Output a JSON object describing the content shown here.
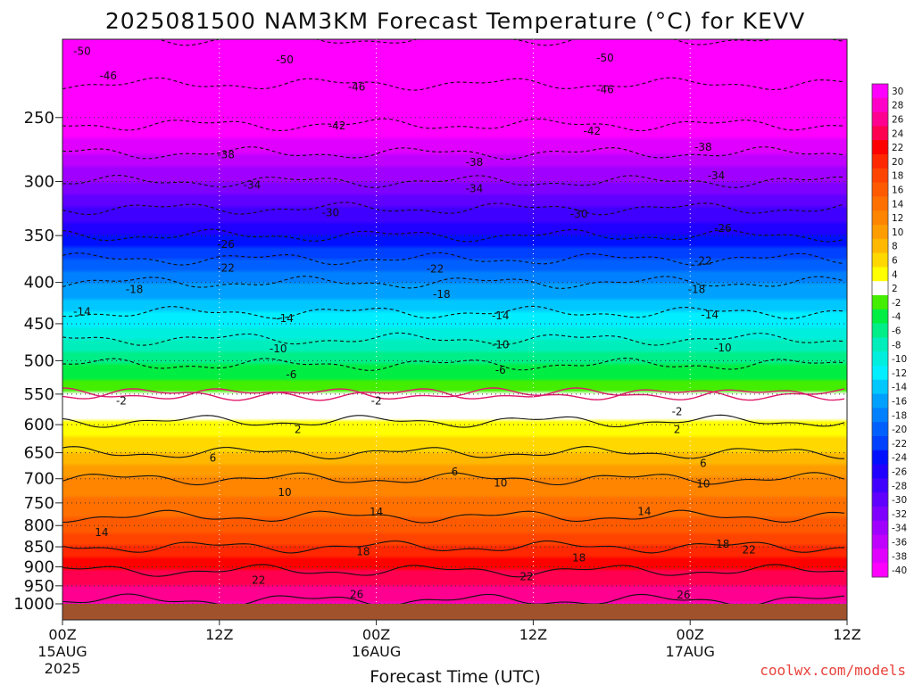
{
  "title": "2025081500 NAM3KM Forecast Temperature (°C) for KEVV",
  "credit": "coolwx.com/models",
  "colors": {
    "ground": "#a0522d",
    "freezing_line": "#e0186c"
  },
  "chart_data": {
    "type": "heatmap",
    "title": "2025081500 NAM3KM Forecast Temperature (°C) for KEVV",
    "xlabel": "Forecast Time (UTC)",
    "ylabel": "",
    "x_range_hours": [
      0,
      60
    ],
    "y_range_hpa": [
      1000,
      200
    ],
    "y_scale": "log-pressure",
    "grid": true,
    "y_ticks": [
      250,
      300,
      350,
      400,
      450,
      500,
      550,
      600,
      650,
      700,
      750,
      800,
      850,
      900,
      950,
      1000
    ],
    "x_ticks": [
      {
        "hour": 0,
        "l1": "00Z",
        "l2": "15AUG",
        "l3": "2025"
      },
      {
        "hour": 12,
        "l1": "12Z",
        "l2": "",
        "l3": ""
      },
      {
        "hour": 24,
        "l1": "00Z",
        "l2": "16AUG",
        "l3": ""
      },
      {
        "hour": 36,
        "l1": "12Z",
        "l2": "",
        "l3": ""
      },
      {
        "hour": 48,
        "l1": "00Z",
        "l2": "17AUG",
        "l3": ""
      },
      {
        "hour": 60,
        "l1": "12Z",
        "l2": "",
        "l3": ""
      }
    ],
    "colorbar_labels": [
      "30",
      "28",
      "26",
      "24",
      "22",
      "20",
      "18",
      "16",
      "14",
      "12",
      "10",
      "8",
      "6",
      "4",
      "2",
      "-2",
      "-4",
      "-6",
      "-8",
      "-10",
      "-12",
      "-14",
      "-16",
      "-18",
      "-20",
      "-22",
      "-24",
      "-26",
      "-28",
      "-30",
      "-32",
      "-34",
      "-36",
      "-38",
      "-40"
    ],
    "color_levels": [
      {
        "min": 28,
        "max": 30,
        "color": "#ff00ff"
      },
      {
        "min": 26,
        "max": 28,
        "color": "#ff00c8"
      },
      {
        "min": 24,
        "max": 26,
        "color": "#ff0090"
      },
      {
        "min": 22,
        "max": 24,
        "color": "#ff0050"
      },
      {
        "min": 20,
        "max": 22,
        "color": "#ff0000"
      },
      {
        "min": 18,
        "max": 20,
        "color": "#ff2800"
      },
      {
        "min": 16,
        "max": 18,
        "color": "#ff4400"
      },
      {
        "min": 14,
        "max": 16,
        "color": "#ff5a00"
      },
      {
        "min": 12,
        "max": 14,
        "color": "#ff7000"
      },
      {
        "min": 10,
        "max": 12,
        "color": "#ff8400"
      },
      {
        "min": 8,
        "max": 10,
        "color": "#ff9c00"
      },
      {
        "min": 6,
        "max": 8,
        "color": "#ffb800"
      },
      {
        "min": 4,
        "max": 6,
        "color": "#ffd800"
      },
      {
        "min": 2,
        "max": 4,
        "color": "#ffff00"
      },
      {
        "min": -2,
        "max": 2,
        "color": "#ffffff"
      },
      {
        "min": -4,
        "max": -2,
        "color": "#44ee00"
      },
      {
        "min": -6,
        "max": -4,
        "color": "#00ee44"
      },
      {
        "min": -8,
        "max": -6,
        "color": "#00ee88"
      },
      {
        "min": -10,
        "max": -8,
        "color": "#00eebb"
      },
      {
        "min": -12,
        "max": -10,
        "color": "#00eedd"
      },
      {
        "min": -14,
        "max": -12,
        "color": "#00eeff"
      },
      {
        "min": -16,
        "max": -14,
        "color": "#00c8ff"
      },
      {
        "min": -18,
        "max": -16,
        "color": "#00a0ff"
      },
      {
        "min": -20,
        "max": -18,
        "color": "#0080ff"
      },
      {
        "min": -22,
        "max": -20,
        "color": "#0060ff"
      },
      {
        "min": -24,
        "max": -22,
        "color": "#0040ff"
      },
      {
        "min": -26,
        "max": -24,
        "color": "#0010ff"
      },
      {
        "min": -28,
        "max": -26,
        "color": "#2000ff"
      },
      {
        "min": -30,
        "max": -28,
        "color": "#4000ff"
      },
      {
        "min": -32,
        "max": -30,
        "color": "#6000ff"
      },
      {
        "min": -34,
        "max": -32,
        "color": "#8000ff"
      },
      {
        "min": -36,
        "max": -34,
        "color": "#a000ff"
      },
      {
        "min": -38,
        "max": -36,
        "color": "#c000ff"
      },
      {
        "min": -40,
        "max": -38,
        "color": "#e000ff"
      },
      {
        "min": -60,
        "max": -40,
        "color": "#ff00ff"
      }
    ],
    "temperature_profile": [
      {
        "p": 1000,
        "t": 26.5
      },
      {
        "p": 950,
        "t": 24
      },
      {
        "p": 900,
        "t": 21.5
      },
      {
        "p": 850,
        "t": 18
      },
      {
        "p": 800,
        "t": 15
      },
      {
        "p": 750,
        "t": 12.5
      },
      {
        "p": 700,
        "t": 10
      },
      {
        "p": 650,
        "t": 6
      },
      {
        "p": 600,
        "t": 2.5
      },
      {
        "p": 550,
        "t": -2
      },
      {
        "p": 500,
        "t": -6.5
      },
      {
        "p": 450,
        "t": -12.5
      },
      {
        "p": 400,
        "t": -18
      },
      {
        "p": 350,
        "t": -26
      },
      {
        "p": 300,
        "t": -34
      },
      {
        "p": 250,
        "t": -43
      },
      {
        "p": 200,
        "t": -50
      }
    ],
    "contour_labels": [
      {
        "t": "-50",
        "h": 1.5,
        "p": 207
      },
      {
        "t": "-50",
        "h": 17,
        "p": 212
      },
      {
        "t": "-50",
        "h": 41.5,
        "p": 211
      },
      {
        "t": "-46",
        "h": 3.5,
        "p": 222
      },
      {
        "t": "-46",
        "h": 22.5,
        "p": 229
      },
      {
        "t": "-46",
        "h": 41.5,
        "p": 231
      },
      {
        "t": "-42",
        "h": 21,
        "p": 256
      },
      {
        "t": "-42",
        "h": 40.5,
        "p": 260
      },
      {
        "t": "-38",
        "h": 12.5,
        "p": 278
      },
      {
        "t": "-38",
        "h": 31.5,
        "p": 284
      },
      {
        "t": "-38",
        "h": 49,
        "p": 272
      },
      {
        "t": "-34",
        "h": 14.5,
        "p": 303
      },
      {
        "t": "-34",
        "h": 31.5,
        "p": 306
      },
      {
        "t": "-34",
        "h": 50,
        "p": 295
      },
      {
        "t": "-30",
        "h": 20.5,
        "p": 328
      },
      {
        "t": "-30",
        "h": 39.5,
        "p": 329
      },
      {
        "t": "-26",
        "h": 12.5,
        "p": 359
      },
      {
        "t": "-26",
        "h": 50.5,
        "p": 343
      },
      {
        "t": "-22",
        "h": 12.5,
        "p": 384
      },
      {
        "t": "-22",
        "h": 28.5,
        "p": 385
      },
      {
        "t": "-22",
        "h": 49,
        "p": 376
      },
      {
        "t": "-18",
        "h": 5.5,
        "p": 408
      },
      {
        "t": "-18",
        "h": 29,
        "p": 414
      },
      {
        "t": "-18",
        "h": 48.5,
        "p": 408
      },
      {
        "t": "-14",
        "h": 1.5,
        "p": 435
      },
      {
        "t": "-14",
        "h": 17,
        "p": 443
      },
      {
        "t": "-14",
        "h": 33.5,
        "p": 440
      },
      {
        "t": "-14",
        "h": 49.5,
        "p": 439
      },
      {
        "t": "-10",
        "h": 16.5,
        "p": 483
      },
      {
        "t": "-10",
        "h": 33.5,
        "p": 478
      },
      {
        "t": "-10",
        "h": 50.5,
        "p": 482
      },
      {
        "t": "-6",
        "h": 17.5,
        "p": 520
      },
      {
        "t": "-6",
        "h": 33.5,
        "p": 514
      },
      {
        "t": "-2",
        "h": 4.5,
        "p": 561
      },
      {
        "t": "-2",
        "h": 24,
        "p": 561
      },
      {
        "t": "-2",
        "h": 47,
        "p": 578
      },
      {
        "t": "2",
        "h": 18,
        "p": 608
      },
      {
        "t": "2",
        "h": 47,
        "p": 608
      },
      {
        "t": "6",
        "h": 11.5,
        "p": 660
      },
      {
        "t": "6",
        "h": 30,
        "p": 686
      },
      {
        "t": "6",
        "h": 49,
        "p": 670
      },
      {
        "t": "10",
        "h": 17,
        "p": 728
      },
      {
        "t": "10",
        "h": 33.5,
        "p": 709
      },
      {
        "t": "10",
        "h": 49,
        "p": 710
      },
      {
        "t": "14",
        "h": 3,
        "p": 816
      },
      {
        "t": "14",
        "h": 24,
        "p": 770
      },
      {
        "t": "14",
        "h": 44.5,
        "p": 769
      },
      {
        "t": "18",
        "h": 23,
        "p": 862
      },
      {
        "t": "18",
        "h": 39.5,
        "p": 877
      },
      {
        "t": "18",
        "h": 50.5,
        "p": 843
      },
      {
        "t": "22",
        "h": 15,
        "p": 935
      },
      {
        "t": "22",
        "h": 35.5,
        "p": 925
      },
      {
        "t": "22",
        "h": 52.5,
        "p": 857
      },
      {
        "t": "26",
        "h": 22.5,
        "p": 974
      },
      {
        "t": "26",
        "h": 47.5,
        "p": 975
      }
    ]
  }
}
